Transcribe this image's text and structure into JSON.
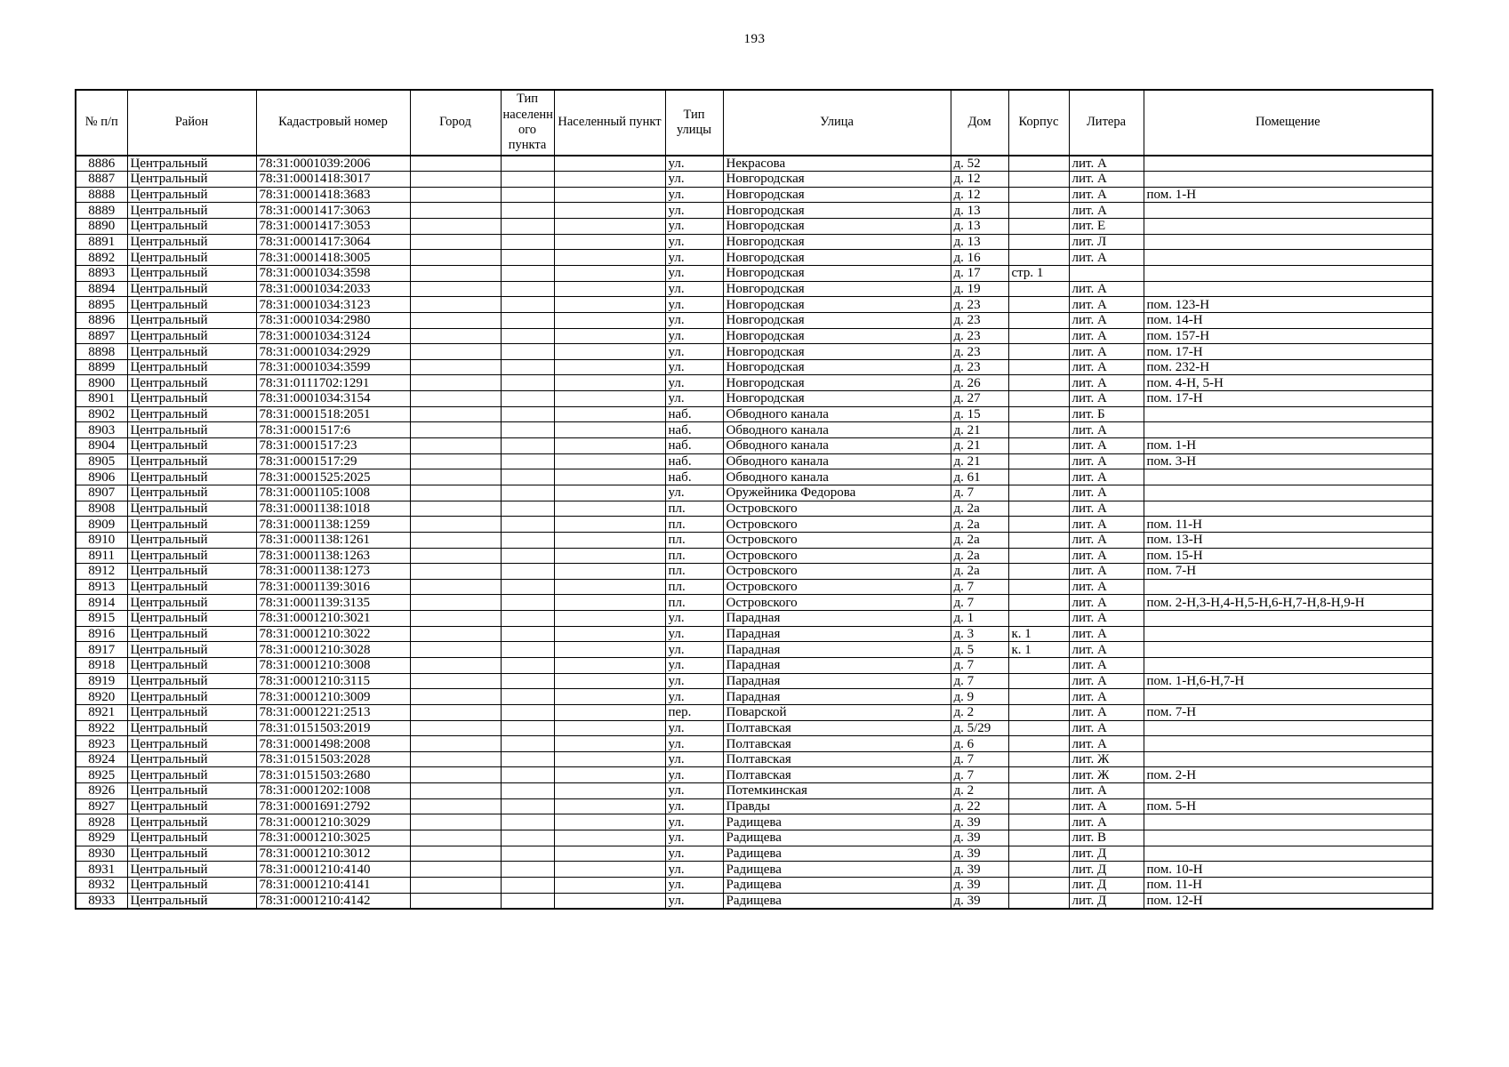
{
  "page": {
    "number": "193"
  },
  "table": {
    "columns": [
      {
        "key": "num",
        "label": "№ п/п"
      },
      {
        "key": "raion",
        "label": "Район"
      },
      {
        "key": "kadastr",
        "label": "Кадастровый номер"
      },
      {
        "key": "gorod",
        "label": "Город"
      },
      {
        "key": "tip_np",
        "label": "Тип населенн ого пункта"
      },
      {
        "key": "np",
        "label": "Населенный пункт"
      },
      {
        "key": "tip_ul",
        "label": "Тип улицы"
      },
      {
        "key": "ulitsa",
        "label": "Улица"
      },
      {
        "key": "dom",
        "label": "Дом"
      },
      {
        "key": "korpus",
        "label": "Корпус"
      },
      {
        "key": "litera",
        "label": "Литера"
      },
      {
        "key": "pom",
        "label": "Помещение"
      }
    ],
    "rows": [
      [
        "8886",
        "Центральный",
        "78:31:0001039:2006",
        "",
        "",
        "",
        "ул.",
        "Некрасова",
        "д. 52",
        "",
        "лит. А",
        ""
      ],
      [
        "8887",
        "Центральный",
        "78:31:0001418:3017",
        "",
        "",
        "",
        "ул.",
        "Новгородская",
        "д. 12",
        "",
        "лит. А",
        ""
      ],
      [
        "8888",
        "Центральный",
        "78:31:0001418:3683",
        "",
        "",
        "",
        "ул.",
        "Новгородская",
        "д. 12",
        "",
        "лит. А",
        "пом. 1-Н"
      ],
      [
        "8889",
        "Центральный",
        "78:31:0001417:3063",
        "",
        "",
        "",
        "ул.",
        "Новгородская",
        "д. 13",
        "",
        "лит. А",
        ""
      ],
      [
        "8890",
        "Центральный",
        "78:31:0001417:3053",
        "",
        "",
        "",
        "ул.",
        "Новгородская",
        "д. 13",
        "",
        "лит. Е",
        ""
      ],
      [
        "8891",
        "Центральный",
        "78:31:0001417:3064",
        "",
        "",
        "",
        "ул.",
        "Новгородская",
        "д. 13",
        "",
        "лит. Л",
        ""
      ],
      [
        "8892",
        "Центральный",
        "78:31:0001418:3005",
        "",
        "",
        "",
        "ул.",
        "Новгородская",
        "д. 16",
        "",
        "лит. А",
        ""
      ],
      [
        "8893",
        "Центральный",
        "78:31:0001034:3598",
        "",
        "",
        "",
        "ул.",
        "Новгородская",
        "д. 17",
        "стр. 1",
        "",
        ""
      ],
      [
        "8894",
        "Центральный",
        "78:31:0001034:2033",
        "",
        "",
        "",
        "ул.",
        "Новгородская",
        "д. 19",
        "",
        "лит. А",
        ""
      ],
      [
        "8895",
        "Центральный",
        "78:31:0001034:3123",
        "",
        "",
        "",
        "ул.",
        "Новгородская",
        "д. 23",
        "",
        "лит. А",
        "пом. 123-Н"
      ],
      [
        "8896",
        "Центральный",
        "78:31:0001034:2980",
        "",
        "",
        "",
        "ул.",
        "Новгородская",
        "д. 23",
        "",
        "лит. А",
        "пом. 14-Н"
      ],
      [
        "8897",
        "Центральный",
        "78:31:0001034:3124",
        "",
        "",
        "",
        "ул.",
        "Новгородская",
        "д. 23",
        "",
        "лит. А",
        "пом. 157-Н"
      ],
      [
        "8898",
        "Центральный",
        "78:31:0001034:2929",
        "",
        "",
        "",
        "ул.",
        "Новгородская",
        "д. 23",
        "",
        "лит. А",
        "пом. 17-Н"
      ],
      [
        "8899",
        "Центральный",
        "78:31:0001034:3599",
        "",
        "",
        "",
        "ул.",
        "Новгородская",
        "д. 23",
        "",
        "лит. А",
        "пом. 232-Н"
      ],
      [
        "8900",
        "Центральный",
        "78:31:0111702:1291",
        "",
        "",
        "",
        "ул.",
        "Новгородская",
        "д. 26",
        "",
        "лит. А",
        "пом. 4-Н, 5-Н"
      ],
      [
        "8901",
        "Центральный",
        "78:31:0001034:3154",
        "",
        "",
        "",
        "ул.",
        "Новгородская",
        "д. 27",
        "",
        "лит. А",
        "пом. 17-Н"
      ],
      [
        "8902",
        "Центральный",
        "78:31:0001518:2051",
        "",
        "",
        "",
        "наб.",
        "Обводного канала",
        "д. 15",
        "",
        "лит. Б",
        ""
      ],
      [
        "8903",
        "Центральный",
        "78:31:0001517:6",
        "",
        "",
        "",
        "наб.",
        "Обводного канала",
        "д. 21",
        "",
        "лит. А",
        ""
      ],
      [
        "8904",
        "Центральный",
        "78:31:0001517:23",
        "",
        "",
        "",
        "наб.",
        "Обводного канала",
        "д. 21",
        "",
        "лит. А",
        "пом. 1-Н"
      ],
      [
        "8905",
        "Центральный",
        "78:31:0001517:29",
        "",
        "",
        "",
        "наб.",
        "Обводного канала",
        "д. 21",
        "",
        "лит. А",
        "пом. 3-Н"
      ],
      [
        "8906",
        "Центральный",
        "78:31:0001525:2025",
        "",
        "",
        "",
        "наб.",
        "Обводного канала",
        "д. 61",
        "",
        "лит. А",
        ""
      ],
      [
        "8907",
        "Центральный",
        "78:31:0001105:1008",
        "",
        "",
        "",
        "ул.",
        "Оружейника Федорова",
        "д. 7",
        "",
        "лит. А",
        ""
      ],
      [
        "8908",
        "Центральный",
        "78:31:0001138:1018",
        "",
        "",
        "",
        "пл.",
        "Островского",
        "д. 2а",
        "",
        "лит. А",
        ""
      ],
      [
        "8909",
        "Центральный",
        "78:31:0001138:1259",
        "",
        "",
        "",
        "пл.",
        "Островского",
        "д. 2а",
        "",
        "лит. А",
        "пом. 11-Н"
      ],
      [
        "8910",
        "Центральный",
        "78:31:0001138:1261",
        "",
        "",
        "",
        "пл.",
        "Островского",
        "д. 2а",
        "",
        "лит. А",
        "пом. 13-Н"
      ],
      [
        "8911",
        "Центральный",
        "78:31:0001138:1263",
        "",
        "",
        "",
        "пл.",
        "Островского",
        "д. 2а",
        "",
        "лит. А",
        "пом. 15-Н"
      ],
      [
        "8912",
        "Центральный",
        "78:31:0001138:1273",
        "",
        "",
        "",
        "пл.",
        "Островского",
        "д. 2а",
        "",
        "лит. А",
        "пом. 7-Н"
      ],
      [
        "8913",
        "Центральный",
        "78:31:0001139:3016",
        "",
        "",
        "",
        "пл.",
        "Островского",
        "д. 7",
        "",
        "лит. А",
        ""
      ],
      [
        "8914",
        "Центральный",
        "78:31:0001139:3135",
        "",
        "",
        "",
        "пл.",
        "Островского",
        "д. 7",
        "",
        "лит. А",
        "пом. 2-Н,3-Н,4-Н,5-Н,6-Н,7-Н,8-Н,9-Н"
      ],
      [
        "8915",
        "Центральный",
        "78:31:0001210:3021",
        "",
        "",
        "",
        "ул.",
        "Парадная",
        "д. 1",
        "",
        "лит. А",
        ""
      ],
      [
        "8916",
        "Центральный",
        "78:31:0001210:3022",
        "",
        "",
        "",
        "ул.",
        "Парадная",
        "д. 3",
        "к. 1",
        "лит. А",
        ""
      ],
      [
        "8917",
        "Центральный",
        "78:31:0001210:3028",
        "",
        "",
        "",
        "ул.",
        "Парадная",
        "д. 5",
        "к. 1",
        "лит. А",
        ""
      ],
      [
        "8918",
        "Центральный",
        "78:31:0001210:3008",
        "",
        "",
        "",
        "ул.",
        "Парадная",
        "д. 7",
        "",
        "лит. А",
        ""
      ],
      [
        "8919",
        "Центральный",
        "78:31:0001210:3115",
        "",
        "",
        "",
        "ул.",
        "Парадная",
        "д. 7",
        "",
        "лит. А",
        "пом. 1-Н,6-Н,7-Н"
      ],
      [
        "8920",
        "Центральный",
        "78:31:0001210:3009",
        "",
        "",
        "",
        "ул.",
        "Парадная",
        "д. 9",
        "",
        "лит. А",
        ""
      ],
      [
        "8921",
        "Центральный",
        "78:31:0001221:2513",
        "",
        "",
        "",
        "пер.",
        "Поварской",
        "д. 2",
        "",
        "лит. А",
        "пом. 7-Н"
      ],
      [
        "8922",
        "Центральный",
        "78:31:0151503:2019",
        "",
        "",
        "",
        "ул.",
        "Полтавская",
        "д. 5/29",
        "",
        "лит. А",
        ""
      ],
      [
        "8923",
        "Центральный",
        "78:31:0001498:2008",
        "",
        "",
        "",
        "ул.",
        "Полтавская",
        "д. 6",
        "",
        "лит. А",
        ""
      ],
      [
        "8924",
        "Центральный",
        "78:31:0151503:2028",
        "",
        "",
        "",
        "ул.",
        "Полтавская",
        "д. 7",
        "",
        "лит. Ж",
        ""
      ],
      [
        "8925",
        "Центральный",
        "78:31:0151503:2680",
        "",
        "",
        "",
        "ул.",
        "Полтавская",
        "д. 7",
        "",
        "лит. Ж",
        "пом. 2-Н"
      ],
      [
        "8926",
        "Центральный",
        "78:31:0001202:1008",
        "",
        "",
        "",
        "ул.",
        "Потемкинская",
        "д. 2",
        "",
        "лит. А",
        ""
      ],
      [
        "8927",
        "Центральный",
        "78:31:0001691:2792",
        "",
        "",
        "",
        "ул.",
        "Правды",
        "д. 22",
        "",
        "лит. А",
        "пом. 5-Н"
      ],
      [
        "8928",
        "Центральный",
        "78:31:0001210:3029",
        "",
        "",
        "",
        "ул.",
        "Радищева",
        "д. 39",
        "",
        "лит. А",
        ""
      ],
      [
        "8929",
        "Центральный",
        "78:31:0001210:3025",
        "",
        "",
        "",
        "ул.",
        "Радищева",
        "д. 39",
        "",
        "лит. В",
        ""
      ],
      [
        "8930",
        "Центральный",
        "78:31:0001210:3012",
        "",
        "",
        "",
        "ул.",
        "Радищева",
        "д. 39",
        "",
        "лит. Д",
        ""
      ],
      [
        "8931",
        "Центральный",
        "78:31:0001210:4140",
        "",
        "",
        "",
        "ул.",
        "Радищева",
        "д. 39",
        "",
        "лит. Д",
        "пом. 10-Н"
      ],
      [
        "8932",
        "Центральный",
        "78:31:0001210:4141",
        "",
        "",
        "",
        "ул.",
        "Радищева",
        "д. 39",
        "",
        "лит. Д",
        "пом. 11-Н"
      ],
      [
        "8933",
        "Центральный",
        "78:31:0001210:4142",
        "",
        "",
        "",
        "ул.",
        "Радищева",
        "д. 39",
        "",
        "лит. Д",
        "пом. 12-Н"
      ]
    ]
  }
}
